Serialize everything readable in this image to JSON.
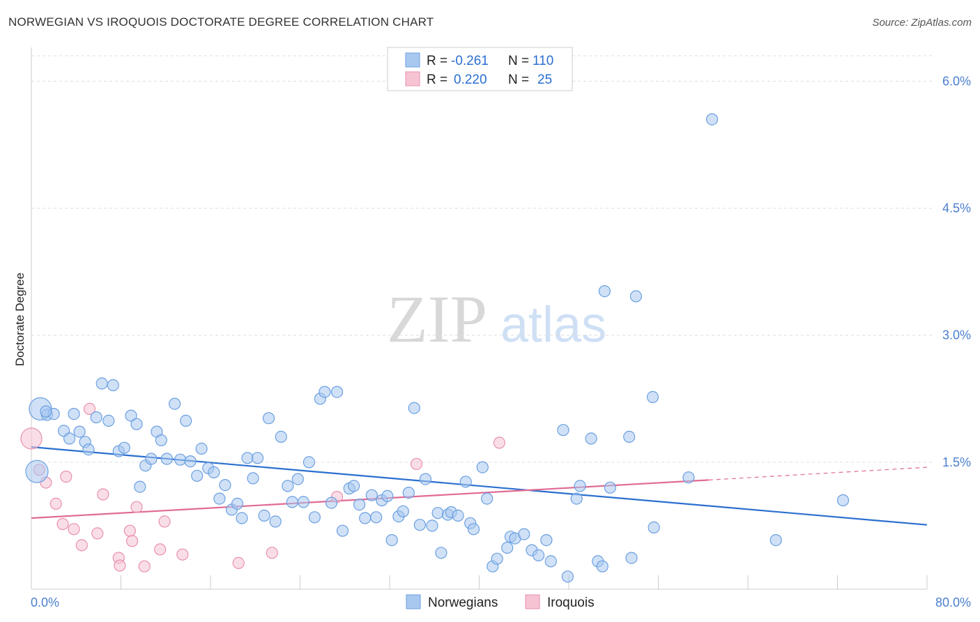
{
  "title": "NORWEGIAN VS IROQUOIS DOCTORATE DEGREE CORRELATION CHART",
  "source": "Source: ZipAtlas.com",
  "watermark": {
    "zip": "ZIP",
    "atlas": "atlas"
  },
  "colors": {
    "norwegians_fill": "#a9c8f0",
    "norwegians_stroke": "#6a9fe0",
    "norwegians_line": "#2b6fcf",
    "iroquois_fill": "#f6c3d3",
    "iroquois_stroke": "#e890ad",
    "iroquois_line": "#e06a94",
    "grid": "#dddddd",
    "tick_text": "#4a7fd0"
  },
  "legend": {
    "rows": [
      {
        "r_label": "R =",
        "r_value": "-0.261",
        "n_label": "N =",
        "n_value": "110"
      },
      {
        "r_label": "R =",
        "r_value": "0.220",
        "n_label": "N =",
        "n_value": "25"
      }
    ]
  },
  "chart_data": {
    "type": "scatter",
    "title": "NORWEGIAN VS IROQUOIS DOCTORATE DEGREE CORRELATION CHART",
    "xlabel": "",
    "ylabel": "Doctorate Degree",
    "xlim": [
      0,
      80
    ],
    "ylim": [
      0,
      6.3
    ],
    "x_tick_labels": [
      "0.0%",
      "80.0%"
    ],
    "y_ticks": [
      1.5,
      3.0,
      4.5,
      6.0
    ],
    "y_tick_labels": [
      "1.5%",
      "3.0%",
      "4.5%",
      "6.0%"
    ],
    "grid": true,
    "legend_position": "bottom-center",
    "series": [
      {
        "name": "Norwegians",
        "r": -0.261,
        "n": 110,
        "trend": {
          "x": [
            0,
            80
          ],
          "y": [
            1.68,
            0.76
          ]
        },
        "points": [
          [
            0.8,
            2.13
          ],
          [
            1.4,
            2.06
          ],
          [
            2.0,
            2.07
          ],
          [
            2.9,
            1.87
          ],
          [
            3.4,
            1.78
          ],
          [
            3.8,
            2.07
          ],
          [
            4.3,
            1.86
          ],
          [
            4.8,
            1.74
          ],
          [
            5.1,
            1.65
          ],
          [
            5.8,
            2.03
          ],
          [
            6.3,
            2.43
          ],
          [
            6.9,
            1.99
          ],
          [
            7.3,
            2.41
          ],
          [
            7.8,
            1.63
          ],
          [
            8.3,
            1.67
          ],
          [
            8.9,
            2.05
          ],
          [
            9.4,
            1.95
          ],
          [
            9.7,
            1.21
          ],
          [
            10.2,
            1.46
          ],
          [
            10.7,
            1.54
          ],
          [
            11.2,
            1.86
          ],
          [
            11.6,
            1.76
          ],
          [
            12.1,
            1.54
          ],
          [
            12.8,
            2.19
          ],
          [
            13.3,
            1.53
          ],
          [
            13.8,
            1.99
          ],
          [
            14.2,
            1.51
          ],
          [
            14.8,
            1.34
          ],
          [
            15.2,
            1.66
          ],
          [
            15.8,
            1.43
          ],
          [
            16.3,
            1.38
          ],
          [
            16.8,
            1.07
          ],
          [
            17.3,
            1.23
          ],
          [
            17.9,
            0.94
          ],
          [
            18.4,
            1.01
          ],
          [
            18.8,
            0.84
          ],
          [
            19.3,
            1.55
          ],
          [
            19.8,
            1.31
          ],
          [
            20.2,
            1.55
          ],
          [
            20.8,
            0.87
          ],
          [
            21.2,
            2.02
          ],
          [
            21.8,
            0.8
          ],
          [
            22.3,
            1.8
          ],
          [
            22.9,
            1.22
          ],
          [
            23.3,
            1.03
          ],
          [
            23.8,
            1.3
          ],
          [
            24.3,
            1.03
          ],
          [
            24.8,
            1.5
          ],
          [
            25.3,
            0.85
          ],
          [
            25.8,
            2.25
          ],
          [
            26.2,
            2.33
          ],
          [
            26.8,
            1.02
          ],
          [
            27.3,
            2.33
          ],
          [
            27.8,
            0.69
          ],
          [
            28.4,
            1.19
          ],
          [
            28.8,
            1.22
          ],
          [
            29.3,
            1.0
          ],
          [
            29.8,
            0.84
          ],
          [
            30.4,
            1.11
          ],
          [
            30.8,
            0.85
          ],
          [
            31.3,
            1.05
          ],
          [
            31.8,
            1.1
          ],
          [
            32.2,
            0.58
          ],
          [
            32.8,
            0.86
          ],
          [
            33.2,
            0.92
          ],
          [
            33.7,
            1.14
          ],
          [
            34.2,
            2.14
          ],
          [
            34.7,
            0.76
          ],
          [
            35.2,
            1.3
          ],
          [
            35.8,
            0.75
          ],
          [
            36.3,
            0.9
          ],
          [
            36.6,
            0.43
          ],
          [
            37.2,
            0.88
          ],
          [
            37.5,
            0.91
          ],
          [
            38.1,
            0.87
          ],
          [
            38.8,
            1.27
          ],
          [
            39.2,
            0.78
          ],
          [
            39.5,
            0.71
          ],
          [
            40.3,
            1.44
          ],
          [
            40.7,
            1.07
          ],
          [
            41.2,
            0.27
          ],
          [
            41.6,
            0.36
          ],
          [
            42.5,
            0.49
          ],
          [
            42.8,
            0.62
          ],
          [
            43.2,
            0.6
          ],
          [
            44.0,
            0.65
          ],
          [
            44.7,
            0.46
          ],
          [
            45.3,
            0.4
          ],
          [
            46.0,
            0.58
          ],
          [
            46.4,
            0.33
          ],
          [
            47.5,
            1.88
          ],
          [
            47.9,
            0.15
          ],
          [
            48.7,
            1.07
          ],
          [
            49.0,
            1.22
          ],
          [
            50.0,
            1.78
          ],
          [
            50.6,
            0.33
          ],
          [
            51.0,
            0.27
          ],
          [
            51.2,
            3.52
          ],
          [
            51.7,
            1.2
          ],
          [
            53.4,
            1.8
          ],
          [
            53.6,
            0.37
          ],
          [
            54.0,
            3.46
          ],
          [
            55.5,
            2.27
          ],
          [
            55.6,
            0.73
          ],
          [
            58.7,
            1.32
          ],
          [
            60.8,
            5.55
          ],
          [
            66.5,
            0.58
          ],
          [
            72.5,
            1.05
          ],
          [
            0.5,
            1.39
          ],
          [
            1.3,
            2.1
          ]
        ]
      },
      {
        "name": "Iroquois",
        "r": 0.22,
        "n": 25,
        "trend": {
          "x": [
            0,
            60.5
          ],
          "y": [
            0.84,
            1.29
          ]
        },
        "trend_dashed": {
          "x": [
            60.5,
            80
          ],
          "y": [
            1.29,
            1.44
          ]
        },
        "points": [
          [
            0.0,
            1.78
          ],
          [
            0.7,
            1.41
          ],
          [
            1.3,
            1.26
          ],
          [
            2.2,
            1.01
          ],
          [
            2.8,
            0.77
          ],
          [
            3.1,
            1.33
          ],
          [
            3.8,
            0.71
          ],
          [
            4.5,
            0.52
          ],
          [
            5.2,
            2.13
          ],
          [
            5.9,
            0.66
          ],
          [
            6.4,
            1.12
          ],
          [
            7.8,
            0.37
          ],
          [
            7.9,
            0.28
          ],
          [
            8.8,
            0.69
          ],
          [
            9.0,
            0.57
          ],
          [
            9.4,
            0.97
          ],
          [
            10.1,
            0.27
          ],
          [
            11.5,
            0.47
          ],
          [
            11.9,
            0.8
          ],
          [
            13.5,
            0.41
          ],
          [
            18.5,
            0.31
          ],
          [
            21.5,
            0.43
          ],
          [
            27.3,
            1.09
          ],
          [
            34.4,
            1.48
          ],
          [
            41.8,
            1.73
          ]
        ]
      }
    ]
  }
}
